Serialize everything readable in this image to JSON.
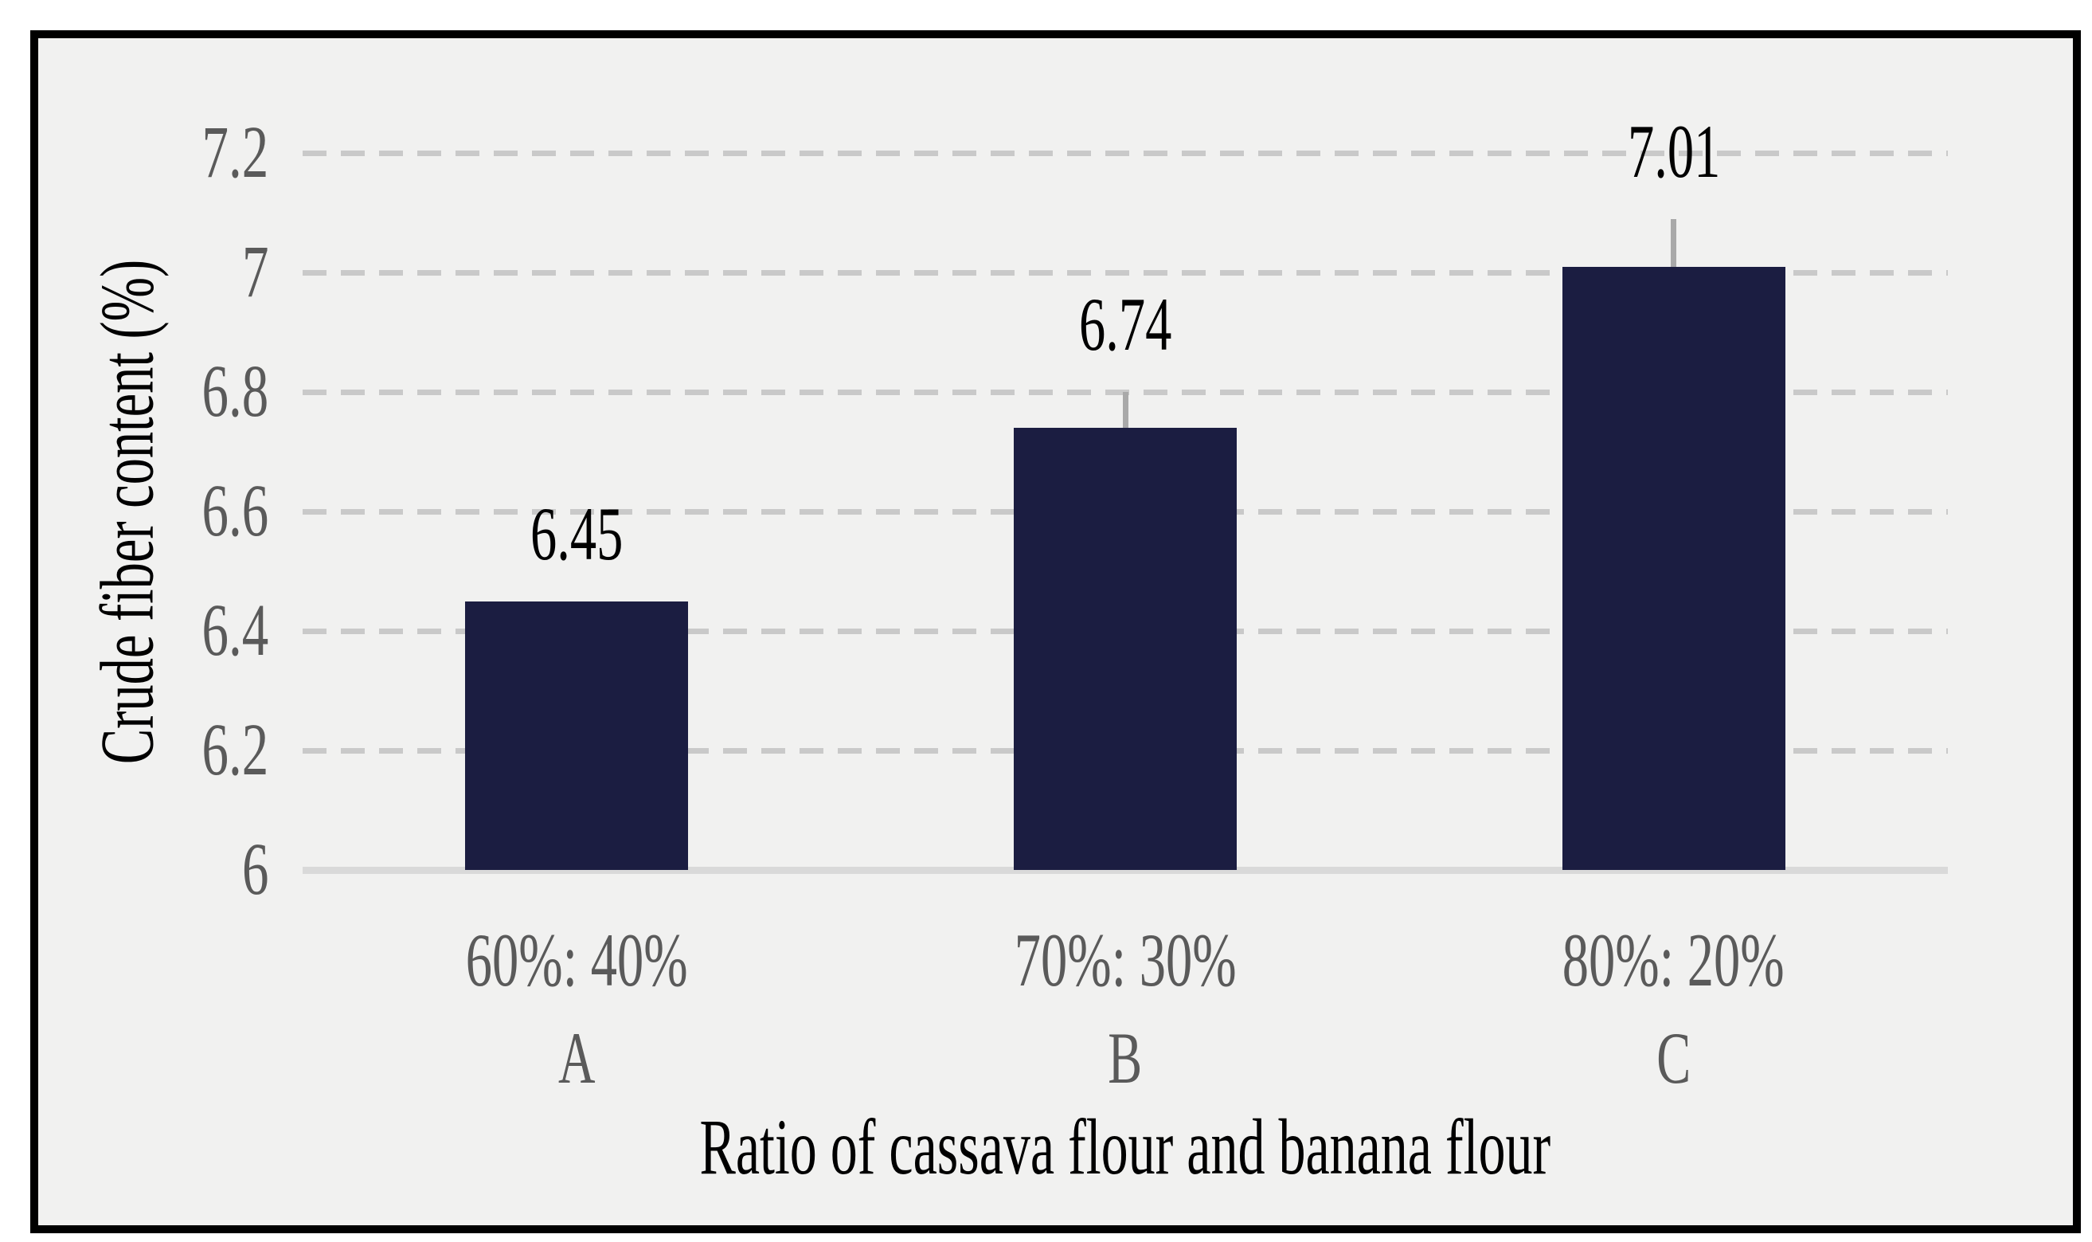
{
  "chart_data": {
    "type": "bar",
    "title": "",
    "xlabel": "Ratio of cassava flour and banana flour",
    "ylabel": "Crude fiber content (%)",
    "categories": [
      "60%: 40%",
      "70%: 30%",
      "80%: 20%"
    ],
    "category_letters": [
      "A",
      "B",
      "C"
    ],
    "series": [
      {
        "name": "Crude fiber content",
        "values": [
          6.45,
          6.74,
          7.01
        ],
        "data_labels": [
          "6.45",
          "6.74",
          "7.01"
        ],
        "error_plus": [
          0,
          0.06,
          0.08
        ]
      }
    ],
    "ylim": [
      6,
      7.2
    ],
    "yticks": [
      {
        "value": 6,
        "label": "6"
      },
      {
        "value": 6.2,
        "label": "6.2"
      },
      {
        "value": 6.4,
        "label": "6.4"
      },
      {
        "value": 6.6,
        "label": "6.6"
      },
      {
        "value": 6.8,
        "label": "6.8"
      },
      {
        "value": 7,
        "label": "7"
      },
      {
        "value": 7.2,
        "label": "7.2"
      }
    ],
    "grid": "horizontal-dashed",
    "legend": "none",
    "colors": {
      "bar": "#1b1d41",
      "gridline": "#c9c9c9",
      "axis_line": "#d9d9d9",
      "error_bar": "#a9a9a9",
      "tick_text": "#5a5a5a",
      "category_text": "#5a5a5a",
      "label_text": "#000000",
      "plot_background": "#f1f1f0",
      "frame_border": "#000000"
    }
  }
}
